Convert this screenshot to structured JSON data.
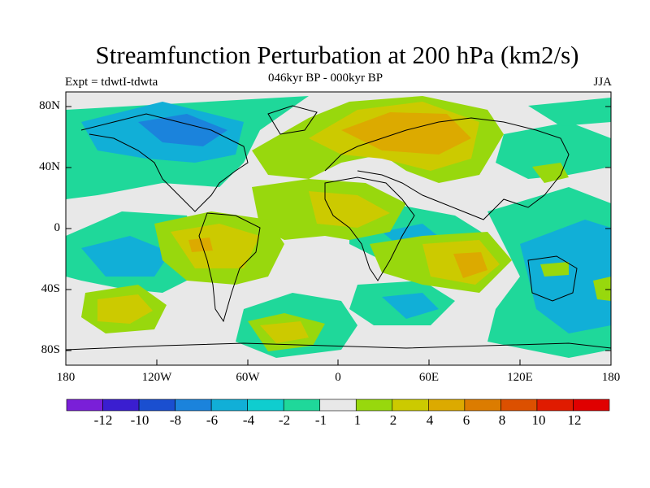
{
  "title": "Streamfunction Perturbation at 200 hPa (km2/s)",
  "left_label": "Expt = tdwtI-tdwta",
  "center_label": "046kyr BP - 000kyr BP",
  "right_label": "JJA",
  "chart_data": {
    "type": "map-contour",
    "field": "Streamfunction perturbation at 200 hPa",
    "units": "km2/s",
    "season": "JJA",
    "lon_range": [
      -180,
      180
    ],
    "lat_range": [
      -90,
      90
    ],
    "y_ticks": [
      "80N",
      "40N",
      "0",
      "40S",
      "80S"
    ],
    "x_ticks": [
      "180",
      "120W",
      "60W",
      "0",
      "60E",
      "120E",
      "180"
    ],
    "colorbar": {
      "levels": [
        "-12",
        "-10",
        "-8",
        "-6",
        "-4",
        "-2",
        "-1",
        "1",
        "2",
        "4",
        "6",
        "8",
        "10",
        "12"
      ],
      "colors": [
        "#7a1fd8",
        "#3a1ed0",
        "#1a4fd0",
        "#1b83dc",
        "#11afd7",
        "#0fcdcf",
        "#1fd89a",
        "#e8e8e8",
        "#98d80d",
        "#ccca00",
        "#dcaa00",
        "#dc7c00",
        "#dc5000",
        "#e01b00",
        "#e00000"
      ]
    }
  }
}
